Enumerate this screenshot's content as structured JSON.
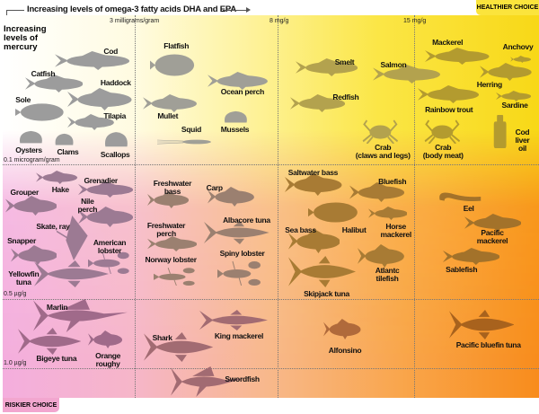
{
  "header": {
    "title": "Increasing levels of omega-3 fatty acids DHA and EPA",
    "healthier_choice": "HEALTHIER CHOICE",
    "riskier_choice": "RISKIER CHOICE",
    "y_axis_label": "Increasing\nlevels of\nmercury"
  },
  "x_thresholds": [
    "3 milligrams/gram",
    "8 mg/g",
    "15 mg/g"
  ],
  "y_thresholds": [
    "0.1 microgram/gram",
    "0.5 µg/g",
    "1.0 µg/g"
  ],
  "species": [
    "Cod",
    "Catfish",
    "Haddock",
    "Sole",
    "Tilapia",
    "Oysters",
    "Clams",
    "Scallops",
    "Flatfish",
    "Mullet",
    "Squid",
    "Ocean perch",
    "Mussels",
    "Smelt",
    "Redfish",
    "Salmon",
    "Crab\n(claws and legs)",
    "Crab\n(body meat)",
    "Mackerel",
    "Rainbow trout",
    "Anchovy",
    "Herring",
    "Sardine",
    "Cod\nliver\noil",
    "Hake",
    "Grenadier",
    "Grouper",
    "Nile\nperch",
    "Skate, ray",
    "Snapper",
    "American\nlobster",
    "Yellowfin\ntuna",
    "Freshwater\nbass",
    "Freshwater\nperch",
    "Norway lobster",
    "Carp",
    "Albacore tuna",
    "Spiny lobster",
    "Saltwater bass",
    "Bluefish",
    "Halibut",
    "Sea bass",
    "Horse\nmackerel",
    "Atlantc\ntilefish",
    "Skipjack tuna",
    "Eel",
    "Pacific\nmackerel",
    "Sablefish",
    "Marlin",
    "Bigeye tuna",
    "Orange\nroughy",
    "Shark",
    "King mackerel",
    "Swordfish",
    "Alfonsino",
    "Pacific bluefin tuna"
  ],
  "colors": {
    "healthier": "#fbe43c",
    "riskier": "#f2a6cf"
  }
}
